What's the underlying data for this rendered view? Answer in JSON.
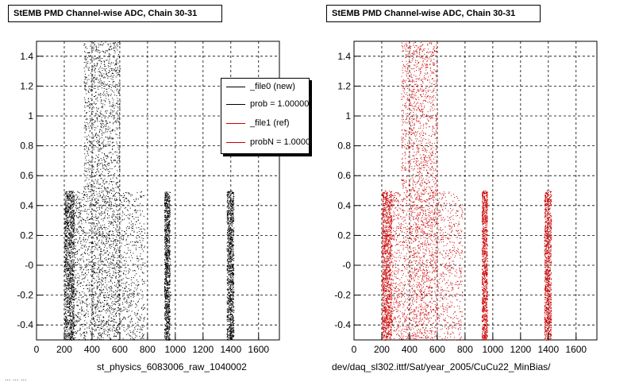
{
  "panels": [
    {
      "title": "StEMB PMD Channel-wise ADC, Chain 30-31",
      "file_label": "st_physics_6083006_raw_1040002",
      "color": "#000000"
    },
    {
      "title": "StEMB PMD Channel-wise ADC, Chain 30-31",
      "file_label": "dev/daq_sl302.ittf/Sat/year_2005/CuCu22_MinBias/",
      "color": "#cc0000"
    }
  ],
  "legend": {
    "entries": [
      {
        "label": "_file0 (new)",
        "color": "#000000"
      },
      {
        "label": "prob = 1.000000",
        "color": "#000000"
      },
      {
        "label": "_file1 (ref)",
        "color": "#cc0000"
      },
      {
        "label": "probN = 1.000000",
        "color": "#cc0000"
      }
    ]
  },
  "footer": "... ... ...",
  "chart_data": [
    {
      "type": "scatter",
      "title": "StEMB PMD Channel-wise ADC, Chain 30-31",
      "xlabel": "",
      "ylabel": "",
      "xlim": [
        0,
        1750
      ],
      "ylim": [
        -0.5,
        1.5
      ],
      "x_ticks": [
        0,
        200,
        400,
        600,
        800,
        1000,
        1200,
        1400,
        1600
      ],
      "y_ticks": [
        -0.4,
        -0.2,
        0,
        0.2,
        0.4,
        0.6,
        0.8,
        1,
        1.2,
        1.4
      ],
      "y_tick_labels": [
        "-0.4",
        "-0.2",
        "-0",
        "0.2",
        "0.4",
        "0.6",
        "0.8",
        "1",
        "1.2",
        "1.4"
      ],
      "grid": true,
      "legend_position": "top-right",
      "series": [
        {
          "name": "_file0 (new)",
          "color": "#000000",
          "bands": [
            {
              "x_range": [
                200,
                270
              ],
              "y_range": [
                -0.5,
                0.5
              ],
              "density": "high"
            },
            {
              "x_range": [
                270,
                400
              ],
              "y_range": [
                -0.5,
                0.5
              ],
              "density": "low"
            },
            {
              "x_range": [
                400,
                600
              ],
              "y_range": [
                -0.5,
                0.5
              ],
              "density": "medium"
            },
            {
              "x_range": [
                600,
                780
              ],
              "y_range": [
                -0.5,
                0.5
              ],
              "density": "low"
            },
            {
              "x_range": [
                340,
                600
              ],
              "y_range": [
                0.5,
                1.5
              ],
              "density": "medium"
            },
            {
              "x_range": [
                920,
                960
              ],
              "y_range": [
                -0.5,
                0.5
              ],
              "density": "medium"
            },
            {
              "x_range": [
                1370,
                1420
              ],
              "y_range": [
                -0.5,
                0.5
              ],
              "density": "medium"
            }
          ]
        }
      ]
    },
    {
      "type": "scatter",
      "title": "StEMB PMD Channel-wise ADC, Chain 30-31",
      "xlabel": "",
      "ylabel": "",
      "xlim": [
        0,
        1750
      ],
      "ylim": [
        -0.5,
        1.5
      ],
      "x_ticks": [
        0,
        200,
        400,
        600,
        800,
        1000,
        1200,
        1400,
        1600
      ],
      "y_ticks": [
        -0.4,
        -0.2,
        0,
        0.2,
        0.4,
        0.6,
        0.8,
        1,
        1.2,
        1.4
      ],
      "y_tick_labels": [
        "-0.4",
        "-0.2",
        "-0",
        "0.2",
        "0.4",
        "0.6",
        "0.8",
        "1",
        "1.2",
        "1.4"
      ],
      "grid": true,
      "series": [
        {
          "name": "_file1 (ref)",
          "color": "#cc0000",
          "bands": [
            {
              "x_range": [
                200,
                270
              ],
              "y_range": [
                -0.5,
                0.5
              ],
              "density": "high"
            },
            {
              "x_range": [
                270,
                400
              ],
              "y_range": [
                -0.5,
                0.5
              ],
              "density": "low"
            },
            {
              "x_range": [
                400,
                600
              ],
              "y_range": [
                -0.5,
                0.5
              ],
              "density": "medium"
            },
            {
              "x_range": [
                600,
                780
              ],
              "y_range": [
                -0.5,
                0.5
              ],
              "density": "low"
            },
            {
              "x_range": [
                340,
                600
              ],
              "y_range": [
                0.5,
                1.5
              ],
              "density": "medium"
            },
            {
              "x_range": [
                920,
                960
              ],
              "y_range": [
                -0.5,
                0.5
              ],
              "density": "medium"
            },
            {
              "x_range": [
                1370,
                1420
              ],
              "y_range": [
                -0.5,
                0.5
              ],
              "density": "medium"
            }
          ]
        }
      ]
    }
  ]
}
